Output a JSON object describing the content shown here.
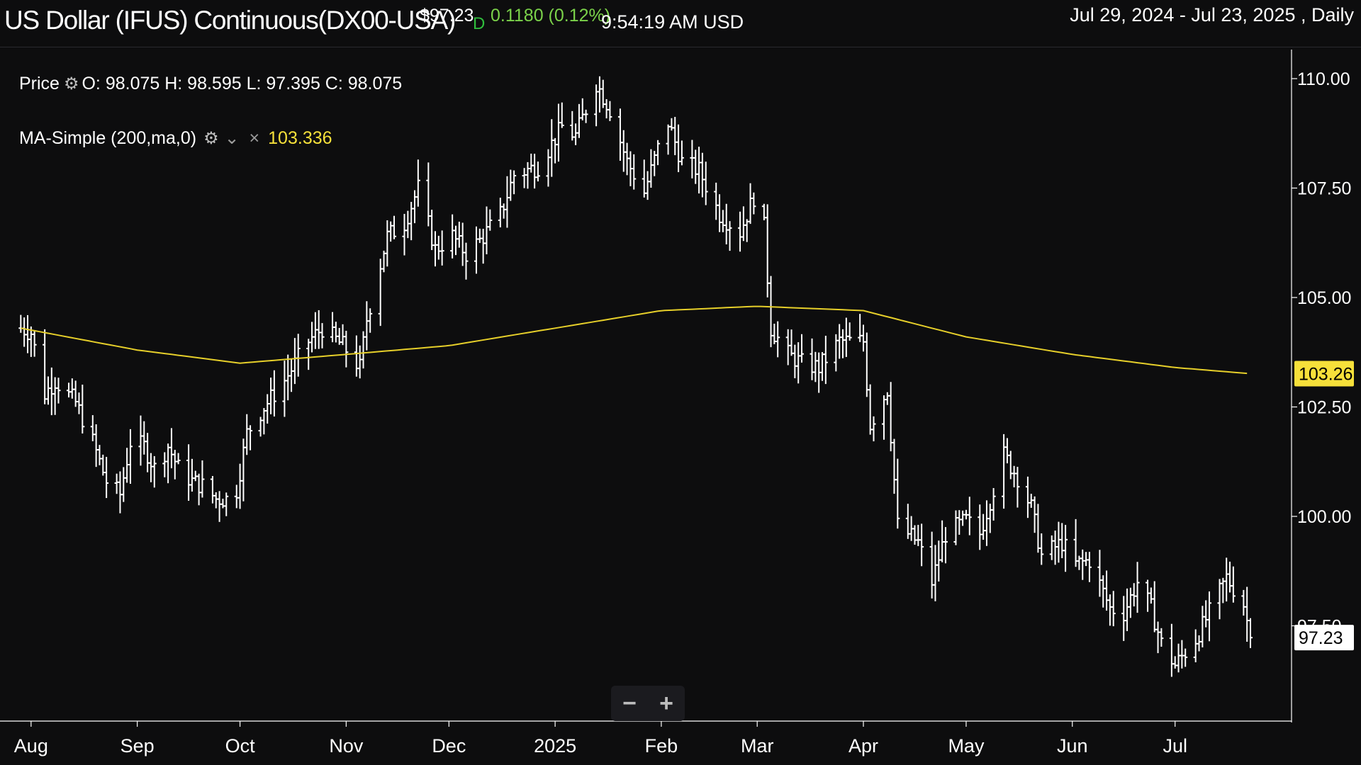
{
  "header": {
    "title": "US Dollar (IFUS) Continuous(DX00-USA)",
    "price": "$97.23",
    "d_marker": "D",
    "change": "0.1180 (0.12%)",
    "time": "9:54:19 AM USD",
    "range": "Jul 29, 2024 - Jul 23, 2025 , Daily"
  },
  "legend": {
    "price_label": "Price",
    "ohlc": "O: 98.075 H: 98.595 L: 97.395 C: 98.075",
    "ma_label": "MA-Simple (200,ma,0)",
    "ma_value": "103.336",
    "gear_icon": "⚙",
    "chevron_icon": "⌄",
    "close_icon": "×"
  },
  "zoom": {
    "minus": "−",
    "plus": "+"
  },
  "colors": {
    "background": "#0d0d0e",
    "bars": "#ffffff",
    "ma_line": "#e6cf2a",
    "ma_badge": "#f6e03a",
    "change": "#7bd24a"
  },
  "chart_data": {
    "type": "ohlc",
    "ylim": [
      95.5,
      110.5
    ],
    "yticks": [
      "110.00",
      "107.50",
      "105.00",
      "102.50",
      "100.00",
      "97.50"
    ],
    "xticks": [
      "Aug",
      "Sep",
      "Oct",
      "Nov",
      "Dec",
      "2025",
      "Feb",
      "Mar",
      "Apr",
      "May",
      "Jun",
      "Jul"
    ],
    "badges": {
      "ma_last": "103.26",
      "price_last": "97.23"
    },
    "close_anchors": [
      {
        "d": "2024-07-29",
        "v": 104.3
      },
      {
        "d": "2024-08-01",
        "v": 104.2
      },
      {
        "d": "2024-08-05",
        "v": 102.8
      },
      {
        "d": "2024-08-08",
        "v": 103.1
      },
      {
        "d": "2024-08-14",
        "v": 102.6
      },
      {
        "d": "2024-08-19",
        "v": 101.7
      },
      {
        "d": "2024-08-23",
        "v": 100.8
      },
      {
        "d": "2024-08-27",
        "v": 100.5
      },
      {
        "d": "2024-08-30",
        "v": 101.7
      },
      {
        "d": "2024-09-03",
        "v": 101.6
      },
      {
        "d": "2024-09-06",
        "v": 101.1
      },
      {
        "d": "2024-09-10",
        "v": 101.6
      },
      {
        "d": "2024-09-13",
        "v": 101.1
      },
      {
        "d": "2024-09-17",
        "v": 100.8
      },
      {
        "d": "2024-09-20",
        "v": 100.7
      },
      {
        "d": "2024-09-24",
        "v": 100.4
      },
      {
        "d": "2024-09-27",
        "v": 100.4
      },
      {
        "d": "2024-09-30",
        "v": 100.6
      },
      {
        "d": "2024-10-03",
        "v": 101.9
      },
      {
        "d": "2024-10-08",
        "v": 102.5
      },
      {
        "d": "2024-10-14",
        "v": 103.1
      },
      {
        "d": "2024-10-21",
        "v": 104.0
      },
      {
        "d": "2024-10-25",
        "v": 104.3
      },
      {
        "d": "2024-10-31",
        "v": 103.9
      },
      {
        "d": "2024-11-05",
        "v": 103.4
      },
      {
        "d": "2024-11-07",
        "v": 104.5
      },
      {
        "d": "2024-11-13",
        "v": 106.4
      },
      {
        "d": "2024-11-18",
        "v": 106.7
      },
      {
        "d": "2024-11-22",
        "v": 107.5
      },
      {
        "d": "2024-11-27",
        "v": 106.1
      },
      {
        "d": "2024-12-02",
        "v": 106.4
      },
      {
        "d": "2024-12-06",
        "v": 106.0
      },
      {
        "d": "2024-12-10",
        "v": 106.3
      },
      {
        "d": "2024-12-16",
        "v": 106.9
      },
      {
        "d": "2024-12-20",
        "v": 107.8
      },
      {
        "d": "2024-12-27",
        "v": 108.0
      },
      {
        "d": "2025-01-03",
        "v": 108.9
      },
      {
        "d": "2025-01-07",
        "v": 108.7
      },
      {
        "d": "2025-01-13",
        "v": 109.9
      },
      {
        "d": "2025-01-17",
        "v": 109.3
      },
      {
        "d": "2025-01-22",
        "v": 108.1
      },
      {
        "d": "2025-01-27",
        "v": 107.4
      },
      {
        "d": "2025-01-31",
        "v": 108.4
      },
      {
        "d": "2025-02-03",
        "v": 109.0
      },
      {
        "d": "2025-02-07",
        "v": 108.1
      },
      {
        "d": "2025-02-12",
        "v": 107.9
      },
      {
        "d": "2025-02-18",
        "v": 106.9
      },
      {
        "d": "2025-02-24",
        "v": 106.5
      },
      {
        "d": "2025-02-28",
        "v": 107.3
      },
      {
        "d": "2025-03-03",
        "v": 106.6
      },
      {
        "d": "2025-03-05",
        "v": 104.3
      },
      {
        "d": "2025-03-10",
        "v": 103.7
      },
      {
        "d": "2025-03-14",
        "v": 103.5
      },
      {
        "d": "2025-03-19",
        "v": 103.4
      },
      {
        "d": "2025-03-25",
        "v": 104.0
      },
      {
        "d": "2025-03-28",
        "v": 104.0
      },
      {
        "d": "2025-04-01",
        "v": 104.0
      },
      {
        "d": "2025-04-03",
        "v": 102.1
      },
      {
        "d": "2025-04-08",
        "v": 102.9
      },
      {
        "d": "2025-04-11",
        "v": 99.8
      },
      {
        "d": "2025-04-17",
        "v": 99.4
      },
      {
        "d": "2025-04-21",
        "v": 98.5
      },
      {
        "d": "2025-04-25",
        "v": 99.6
      },
      {
        "d": "2025-05-01",
        "v": 99.9
      },
      {
        "d": "2025-05-05",
        "v": 99.6
      },
      {
        "d": "2025-05-12",
        "v": 101.4
      },
      {
        "d": "2025-05-16",
        "v": 100.9
      },
      {
        "d": "2025-05-20",
        "v": 100.2
      },
      {
        "d": "2025-05-23",
        "v": 99.1
      },
      {
        "d": "2025-05-29",
        "v": 99.4
      },
      {
        "d": "2025-06-02",
        "v": 98.9
      },
      {
        "d": "2025-06-06",
        "v": 99.0
      },
      {
        "d": "2025-06-12",
        "v": 97.9
      },
      {
        "d": "2025-06-16",
        "v": 97.8
      },
      {
        "d": "2025-06-20",
        "v": 98.5
      },
      {
        "d": "2025-06-24",
        "v": 97.9
      },
      {
        "d": "2025-06-27",
        "v": 97.1
      },
      {
        "d": "2025-07-01",
        "v": 96.6
      },
      {
        "d": "2025-07-07",
        "v": 97.2
      },
      {
        "d": "2025-07-11",
        "v": 97.8
      },
      {
        "d": "2025-07-16",
        "v": 98.6
      },
      {
        "d": "2025-07-21",
        "v": 98.0
      },
      {
        "d": "2025-07-23",
        "v": 97.23
      }
    ],
    "ma_anchors": [
      {
        "d": "2024-07-29",
        "v": 104.3
      },
      {
        "d": "2024-09-01",
        "v": 103.8
      },
      {
        "d": "2024-10-01",
        "v": 103.5
      },
      {
        "d": "2024-11-01",
        "v": 103.7
      },
      {
        "d": "2024-12-01",
        "v": 103.9
      },
      {
        "d": "2025-01-01",
        "v": 104.3
      },
      {
        "d": "2025-02-01",
        "v": 104.7
      },
      {
        "d": "2025-03-01",
        "v": 104.8
      },
      {
        "d": "2025-04-01",
        "v": 104.7
      },
      {
        "d": "2025-05-01",
        "v": 104.1
      },
      {
        "d": "2025-06-01",
        "v": 103.7
      },
      {
        "d": "2025-07-01",
        "v": 103.4
      },
      {
        "d": "2025-07-23",
        "v": 103.26
      }
    ]
  }
}
